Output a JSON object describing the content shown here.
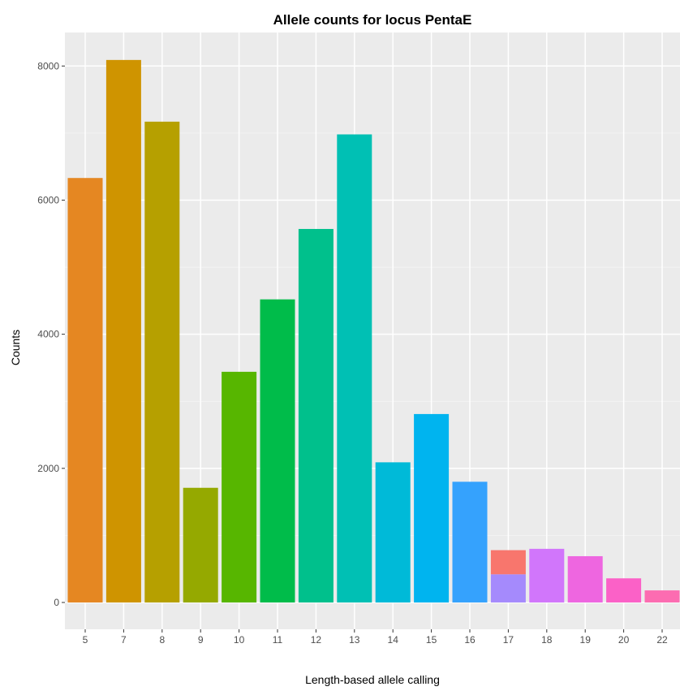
{
  "chart_data": {
    "type": "bar",
    "title": "Allele counts for locus PentaE",
    "xlabel": "Length-based allele calling",
    "ylabel": "Counts",
    "categories": [
      "5",
      "7",
      "8",
      "9",
      "10",
      "11",
      "12",
      "13",
      "14",
      "15",
      "16",
      "17",
      "18",
      "19",
      "20",
      "22"
    ],
    "values": [
      6330,
      8090,
      7170,
      1710,
      3440,
      4520,
      5570,
      6980,
      2090,
      2810,
      1800,
      780,
      800,
      690,
      360,
      180
    ],
    "stacked_segments": [
      {
        "category": "17",
        "parts": [
          {
            "value": 420,
            "color": "#a58afc"
          },
          {
            "value": 360,
            "color": "#f8766d"
          }
        ]
      }
    ],
    "colors": [
      "#e58722",
      "#cf9400",
      "#b6a000",
      "#95a900",
      "#57b600",
      "#00bc4a",
      "#00c08c",
      "#00c0b4",
      "#00bad8",
      "#00b4ef",
      "#35a2fd",
      "#a58afc",
      "#d176fb",
      "#ee66e0",
      "#fb61c7",
      "#fc6cb1"
    ],
    "yticks": [
      0,
      2000,
      4000,
      6000,
      8000
    ],
    "ylim": [
      -400,
      8500
    ],
    "grid": true,
    "panel_background": "#ebebeb",
    "grid_color": "#ffffff"
  }
}
